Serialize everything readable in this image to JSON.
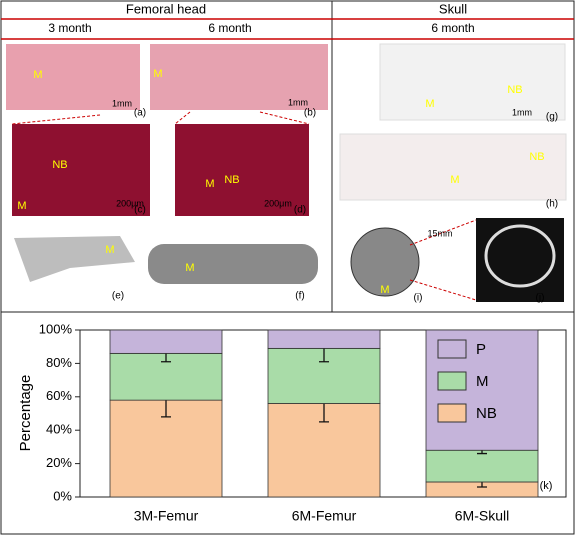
{
  "header": {
    "left": "Femoral head",
    "right": "Skull",
    "cols": [
      "3 month",
      "6 month",
      "6 month"
    ]
  },
  "panels": [
    {
      "letter": "(a)",
      "texts": [
        "M",
        "1mm"
      ]
    },
    {
      "letter": "(b)",
      "texts": [
        "M",
        "1mm"
      ]
    },
    {
      "letter": "(c)",
      "texts": [
        "M",
        "NB",
        "200μm"
      ]
    },
    {
      "letter": "(d)",
      "texts": [
        "M",
        "NB",
        "200μm"
      ]
    },
    {
      "letter": "(e)",
      "texts": [
        "M"
      ]
    },
    {
      "letter": "(f)",
      "texts": [
        "M"
      ]
    },
    {
      "letter": "(g)",
      "texts": [
        "M",
        "NB",
        "1mm"
      ]
    },
    {
      "letter": "(h)",
      "texts": [
        "M",
        "NB"
      ]
    },
    {
      "letter": "(i)",
      "texts": [
        "M",
        "15mm"
      ]
    },
    {
      "letter": "(j)",
      "texts": []
    }
  ],
  "chart_data": {
    "type": "stacked-bar",
    "y_label": "Percentage",
    "panel_label": "(k)",
    "categories": [
      "3M-Femur",
      "6M-Femur",
      "6M-Skull"
    ],
    "series": [
      {
        "name": "NB",
        "color": "#f9c79c",
        "values": [
          58,
          56,
          9
        ],
        "errors": [
          10,
          11,
          3
        ]
      },
      {
        "name": "M",
        "color": "#a9dca8",
        "values": [
          28,
          33,
          19
        ],
        "errors": [
          5,
          8,
          2
        ]
      },
      {
        "name": "P",
        "color": "#c5b4da",
        "values": [
          14,
          11,
          72
        ]
      }
    ],
    "ylim": [
      0,
      100
    ],
    "yticks": [
      {
        "value": 0,
        "label": "0%"
      },
      {
        "value": 20,
        "label": "20%"
      },
      {
        "value": 40,
        "label": "40%"
      },
      {
        "value": 60,
        "label": "60%"
      },
      {
        "value": 80,
        "label": "80%"
      },
      {
        "value": 100,
        "label": "100%"
      }
    ]
  }
}
